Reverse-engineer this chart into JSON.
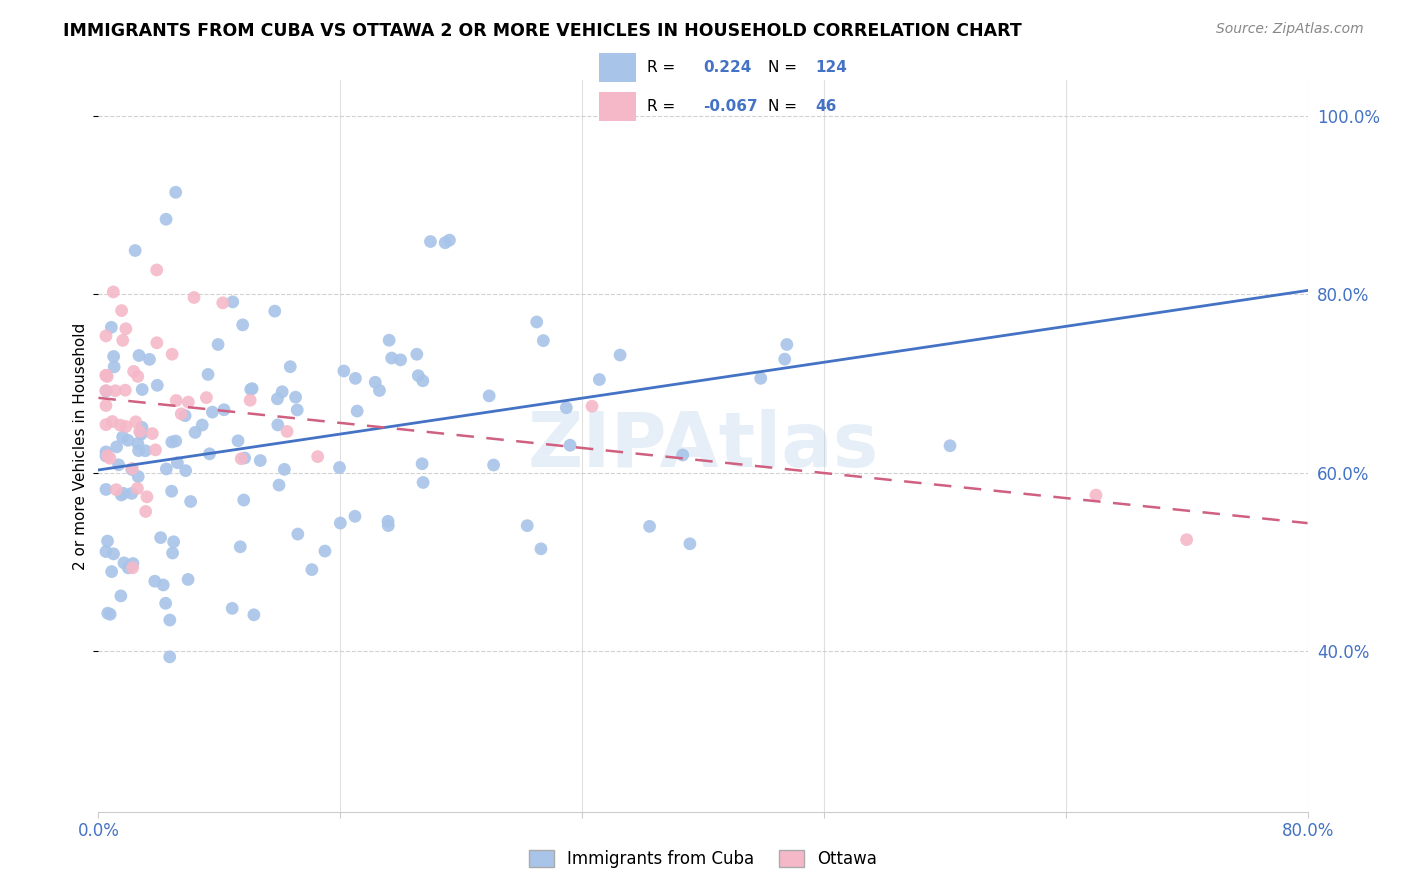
{
  "title": "IMMIGRANTS FROM CUBA VS OTTAWA 2 OR MORE VEHICLES IN HOUSEHOLD CORRELATION CHART",
  "source": "Source: ZipAtlas.com",
  "ylabel": "2 or more Vehicles in Household",
  "legend_label1": "Immigrants from Cuba",
  "legend_label2": "Ottawa",
  "R1": "0.224",
  "N1": "124",
  "R2": "-0.067",
  "N2": "46",
  "color_blue": "#a8c4e8",
  "color_pink": "#f5b8c8",
  "line_blue": "#4472c4",
  "line_pink": "#d06080",
  "watermark": "ZIPAtlas",
  "xlim": [
    0.0,
    0.8
  ],
  "ylim": [
    0.22,
    1.04
  ],
  "xticks": [
    0.0,
    0.16,
    0.32,
    0.48,
    0.64,
    0.8
  ],
  "xtick_labels": [
    "0.0%",
    "",
    "",
    "",
    "",
    "80.0%"
  ],
  "yticks": [
    0.4,
    0.6,
    0.8,
    1.0
  ],
  "ytick_labels": [
    "40.0%",
    "60.0%",
    "80.0%",
    "100.0%"
  ]
}
